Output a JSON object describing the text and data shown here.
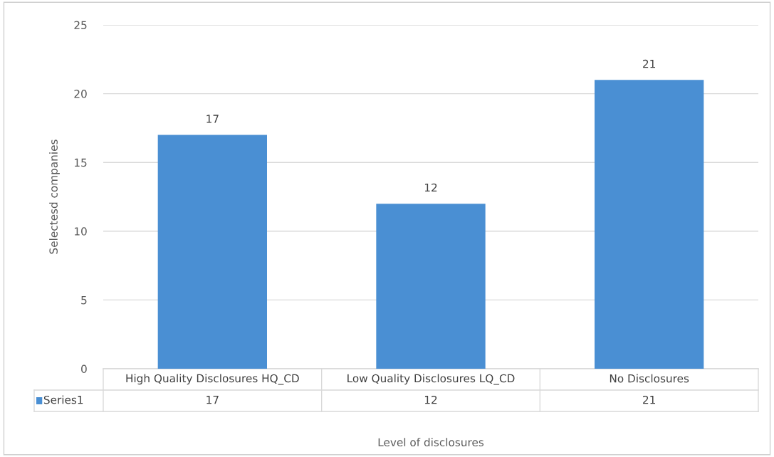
{
  "chart_data": {
    "type": "bar",
    "categories": [
      "High Quality Disclosures HQ_CD",
      "Low Quality Disclosures LQ_CD",
      "No Disclosures"
    ],
    "series": [
      {
        "name": "Series1",
        "color": "#4a8fd3",
        "values": [
          17,
          12,
          21
        ]
      }
    ],
    "annotations": [
      "17",
      "12",
      "21"
    ],
    "xlabel": "Level of disclosures",
    "ylabel": "Selectesd companies",
    "ylim": [
      0,
      25
    ],
    "yticks": [
      0,
      5,
      10,
      15,
      20,
      25
    ],
    "grid": "y",
    "data_labels": true,
    "legend": "bottom"
  }
}
